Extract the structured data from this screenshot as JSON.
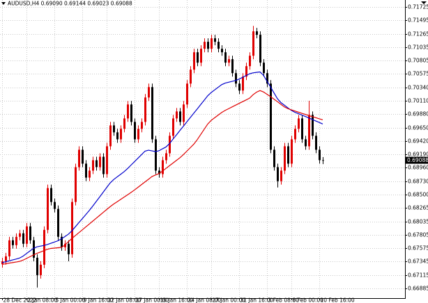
{
  "chart_data": {
    "type": "candlestick",
    "title": "AUDUSD,H4  0.69090 0.69144 0.69023 0.69088",
    "categories": [
      "28 Dec 2022",
      null,
      null,
      null,
      null,
      null,
      null,
      "2 Jan 08:00",
      null,
      null,
      null,
      null,
      null,
      null,
      null,
      "5 Jan 00:00",
      null,
      null,
      null,
      null,
      null,
      null,
      null,
      "9 Jan 16:00",
      null,
      null,
      null,
      null,
      null,
      null,
      "12 Jan 08:00",
      null,
      null,
      null,
      null,
      null,
      null,
      null,
      "17 Jan 00:00",
      null,
      null,
      null,
      null,
      null,
      null,
      "19 Jan 16:00",
      null,
      null,
      null,
      null,
      null,
      null,
      null,
      "24 Jan 08:00",
      null,
      null,
      null,
      null,
      null,
      null,
      "27 Jan 00:00",
      null,
      null,
      null,
      null,
      null,
      null,
      null,
      "31 Jan 16:00",
      null,
      null,
      null,
      null,
      null,
      null,
      null,
      "3 Feb 08:00",
      null,
      null,
      null,
      null,
      null,
      null,
      "8 Feb 00:00",
      null,
      null,
      null,
      null,
      null,
      null,
      null,
      "10 Feb 16:00",
      null
    ],
    "open": [
      0.673,
      0.67352,
      0.67436,
      0.67712,
      0.67628,
      0.67772,
      0.67832,
      0.67652,
      0.67951,
      0.67712,
      0.67412,
      0.67113,
      0.67292,
      0.67891,
      0.6861,
      0.68371,
      0.68251,
      0.67772,
      0.67592,
      0.67652,
      0.67472,
      0.68371,
      0.6897,
      0.69269,
      0.6903,
      0.6879,
      0.6891,
      0.69089,
      0.6897,
      0.69149,
      0.6885,
      0.69329,
      0.69688,
      0.69569,
      0.69449,
      0.69629,
      0.69808,
      0.70048,
      0.69748,
      0.69449,
      0.69629,
      0.69748,
      0.70168,
      0.70347,
      0.69449,
      0.6891,
      0.6885,
      0.69089,
      0.69209,
      0.69509,
      0.69808,
      0.69928,
      0.69748,
      0.70048,
      0.70407,
      0.70647,
      0.70946,
      0.70767,
      0.71006,
      0.71126,
      0.71006,
      0.71186,
      0.71126,
      0.71006,
      0.70946,
      0.70767,
      0.70827,
      0.70587,
      0.70407,
      0.70287,
      0.70527,
      0.70707,
      0.70886,
      0.71306,
      0.71246,
      0.70767,
      0.70587,
      0.70407,
      0.69269,
      0.6897,
      0.6873,
      0.6891,
      0.69329,
      0.6903,
      0.69449,
      0.69629,
      0.69808,
      0.69449,
      0.69329,
      0.69868,
      0.69509,
      0.69269,
      0.6909
    ],
    "high": [
      0.67412,
      0.67496,
      0.67772,
      0.67772,
      0.67832,
      0.67892,
      0.67892,
      0.68011,
      0.68011,
      0.67772,
      0.67472,
      0.67352,
      0.67951,
      0.6867,
      0.6867,
      0.68431,
      0.68311,
      0.67832,
      0.67712,
      0.67712,
      0.68431,
      0.6903,
      0.69329,
      0.69329,
      0.6909,
      0.6897,
      0.69149,
      0.69149,
      0.69209,
      0.69209,
      0.69389,
      0.69748,
      0.69748,
      0.69629,
      0.69689,
      0.69868,
      0.70108,
      0.70108,
      0.69808,
      0.69689,
      0.69808,
      0.70228,
      0.70407,
      0.70407,
      0.69509,
      0.6897,
      0.69149,
      0.69269,
      0.69569,
      0.69868,
      0.69988,
      0.69988,
      0.70108,
      0.70467,
      0.70707,
      0.71006,
      0.71006,
      0.71066,
      0.71186,
      0.71186,
      0.71246,
      0.71246,
      0.71186,
      0.71066,
      0.71006,
      0.70887,
      0.70887,
      0.70647,
      0.70467,
      0.70587,
      0.70767,
      0.70946,
      0.714,
      0.71366,
      0.71306,
      0.70827,
      0.70647,
      0.70467,
      0.69329,
      0.6903,
      0.6897,
      0.69389,
      0.69389,
      0.69509,
      0.69689,
      0.69868,
      0.69868,
      0.69509,
      0.7011,
      0.69928,
      0.69569,
      0.69329,
      0.69144
    ],
    "low": [
      0.6724,
      0.67292,
      0.67376,
      0.67568,
      0.67568,
      0.67712,
      0.67592,
      0.67592,
      0.67652,
      0.67352,
      0.669,
      0.67053,
      0.67232,
      0.67831,
      0.68311,
      0.68191,
      0.67712,
      0.67532,
      0.67532,
      0.6735,
      0.67412,
      0.68311,
      0.6891,
      0.6897,
      0.6873,
      0.6873,
      0.6885,
      0.6891,
      0.6891,
      0.6879,
      0.6879,
      0.69269,
      0.69509,
      0.69389,
      0.69389,
      0.69569,
      0.69748,
      0.69688,
      0.69389,
      0.69389,
      0.69569,
      0.69688,
      0.70108,
      0.69389,
      0.6885,
      0.6879,
      0.6879,
      0.69029,
      0.69149,
      0.69449,
      0.69748,
      0.69688,
      0.69688,
      0.69988,
      0.70347,
      0.70587,
      0.70707,
      0.70707,
      0.70946,
      0.70946,
      0.70946,
      0.71066,
      0.70946,
      0.70886,
      0.70707,
      0.70707,
      0.70527,
      0.70347,
      0.70227,
      0.70227,
      0.70467,
      0.70647,
      0.70826,
      0.71186,
      0.70707,
      0.70527,
      0.70347,
      0.69209,
      0.6891,
      0.6862,
      0.6867,
      0.6885,
      0.6897,
      0.6897,
      0.69389,
      0.69569,
      0.69389,
      0.69269,
      0.69269,
      0.69449,
      0.69209,
      0.6903,
      0.69023
    ],
    "close": [
      0.67352,
      0.67436,
      0.67712,
      0.67628,
      0.67772,
      0.67832,
      0.67652,
      0.67951,
      0.67712,
      0.67412,
      0.67113,
      0.67292,
      0.67891,
      0.6861,
      0.68371,
      0.68251,
      0.67772,
      0.67592,
      0.67652,
      0.67472,
      0.68371,
      0.6897,
      0.69269,
      0.6903,
      0.6879,
      0.6891,
      0.69089,
      0.6897,
      0.69149,
      0.6885,
      0.69329,
      0.69688,
      0.69569,
      0.69449,
      0.69629,
      0.69808,
      0.70048,
      0.69748,
      0.69449,
      0.69629,
      0.69748,
      0.70168,
      0.70347,
      0.69449,
      0.6891,
      0.6885,
      0.69089,
      0.69209,
      0.69509,
      0.69808,
      0.69928,
      0.69748,
      0.70048,
      0.70407,
      0.70647,
      0.70946,
      0.70767,
      0.71006,
      0.71126,
      0.71006,
      0.71186,
      0.71126,
      0.71006,
      0.70946,
      0.70767,
      0.70827,
      0.70587,
      0.70407,
      0.70287,
      0.70527,
      0.70707,
      0.70886,
      0.71306,
      0.71246,
      0.70767,
      0.70587,
      0.70407,
      0.69269,
      0.6897,
      0.6873,
      0.6891,
      0.69329,
      0.6903,
      0.69449,
      0.69629,
      0.69808,
      0.69449,
      0.69329,
      0.69868,
      0.69509,
      0.69269,
      0.6909,
      0.69088
    ],
    "up_color": "#e00000",
    "down_color": "#000000",
    "series": [
      {
        "color": "#0000cc",
        "values": [
          0.67326,
          0.67342,
          0.67358,
          0.67374,
          0.67389,
          0.67406,
          0.67439,
          0.67484,
          0.67528,
          0.67574,
          0.67599,
          0.67611,
          0.67623,
          0.6764,
          0.67661,
          0.67682,
          0.67703,
          0.67736,
          0.67775,
          0.67816,
          0.67873,
          0.67943,
          0.68014,
          0.68083,
          0.68153,
          0.68223,
          0.68299,
          0.68379,
          0.68458,
          0.68538,
          0.68619,
          0.68698,
          0.68756,
          0.68802,
          0.68846,
          0.68892,
          0.68946,
          0.69006,
          0.69065,
          0.69125,
          0.69185,
          0.69245,
          0.69262,
          0.6925,
          0.69238,
          0.69252,
          0.69285,
          0.69316,
          0.69373,
          0.69449,
          0.69523,
          0.69599,
          0.69673,
          0.69748,
          0.69823,
          0.69898,
          0.69972,
          0.70048,
          0.70122,
          0.70198,
          0.70254,
          0.70299,
          0.70344,
          0.70389,
          0.70416,
          0.70431,
          0.70446,
          0.70461,
          0.70485,
          0.70515,
          0.70545,
          0.70575,
          0.70592,
          0.706,
          0.70607,
          0.7055,
          0.70448,
          0.70351,
          0.70248,
          0.70147,
          0.7008,
          0.70036,
          0.6999,
          0.69946,
          0.69914,
          0.6989,
          0.69866,
          0.69842,
          0.69817,
          0.6979,
          0.69764,
          0.69739,
          0.69712
        ]
      },
      {
        "color": "#e00000",
        "values": [
          0.67298,
          0.67308,
          0.67319,
          0.67328,
          0.67338,
          0.67349,
          0.6737,
          0.674,
          0.6743,
          0.6746,
          0.67487,
          0.6751,
          0.67534,
          0.67558,
          0.67572,
          0.67578,
          0.67584,
          0.6759,
          0.67628,
          0.67688,
          0.67742,
          0.67792,
          0.67841,
          0.67891,
          0.67942,
          0.67991,
          0.68041,
          0.68091,
          0.68141,
          0.68191,
          0.68241,
          0.6829,
          0.68335,
          0.68374,
          0.68415,
          0.68455,
          0.68494,
          0.68535,
          0.68578,
          0.68623,
          0.6867,
          0.68716,
          0.68761,
          0.68808,
          0.68835,
          0.68859,
          0.68901,
          0.68947,
          0.68994,
          0.69039,
          0.69085,
          0.69131,
          0.69185,
          0.69245,
          0.69305,
          0.69365,
          0.69443,
          0.69533,
          0.69622,
          0.69712,
          0.69775,
          0.6982,
          0.69865,
          0.6991,
          0.69946,
          0.69976,
          0.70006,
          0.70036,
          0.70066,
          0.70096,
          0.70126,
          0.70156,
          0.70216,
          0.7026,
          0.70287,
          0.70263,
          0.70224,
          0.70183,
          0.7014,
          0.70096,
          0.7005,
          0.70006,
          0.69976,
          0.69956,
          0.69936,
          0.69916,
          0.69896,
          0.69877,
          0.69857,
          0.69839,
          0.69821,
          0.69802,
          0.69784
        ]
      }
    ],
    "ylim": [
      0.66717,
      0.71821
    ],
    "yticks": [
      0.71725,
      0.71495,
      0.71265,
      0.71035,
      0.70805,
      0.70575,
      {
        "value": 0.7034,
        "label": "0.70340"
      },
      {
        "value": 0.7011,
        "label": "0.70110"
      },
      {
        "value": 0.6988,
        "label": "0.69880"
      },
      {
        "value": 0.6965,
        "label": "0.69650"
      },
      {
        "value": 0.6942,
        "label": "0.69420"
      },
      {
        "value": 0.6919,
        "label": "0.69190"
      },
      {
        "value": 0.6896,
        "label": "0.68960"
      },
      {
        "value": 0.6873,
        "label": "0.68730"
      },
      {
        "value": 0.685,
        "label": "0.68500"
      },
      0.68265,
      0.68035,
      0.67805,
      0.67575,
      0.67345,
      0.67115,
      0.66885
    ],
    "grid": true
  }
}
